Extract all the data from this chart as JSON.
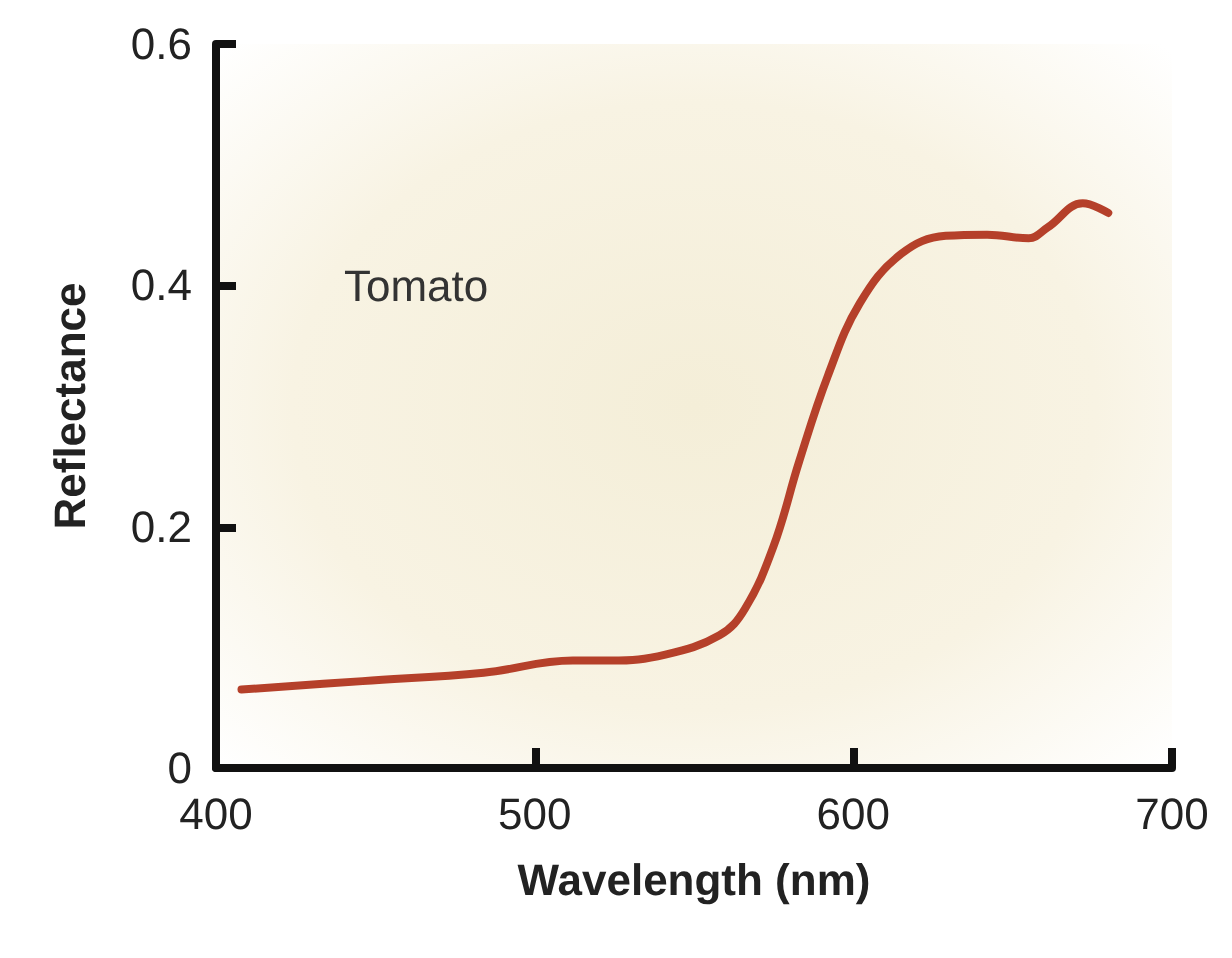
{
  "chart_data": {
    "type": "line",
    "xlabel": "Wavelength (nm)",
    "ylabel": "Reflectance",
    "annotations": [
      "Tomato"
    ],
    "xlim": [
      400,
      700
    ],
    "xticks": [
      400,
      500,
      600,
      700
    ],
    "ylim": [
      0,
      0.6
    ],
    "yticks": [
      0,
      0.2,
      0.4,
      0.6
    ],
    "grid": false,
    "marker": "none",
    "line_style": "solid",
    "series": [
      {
        "color": "#b5402a",
        "x": [
          408,
          446,
          484,
          512,
          524,
          541,
          558,
          566,
          575,
          583,
          592,
          602,
          615,
          629,
          642,
          655,
          661,
          672,
          680
        ],
        "values": [
          0.065,
          0.072,
          0.079,
          0.089,
          0.089,
          0.094,
          0.11,
          0.132,
          0.184,
          0.254,
          0.325,
          0.385,
          0.426,
          0.441,
          0.442,
          0.439,
          0.448,
          0.468,
          0.46
        ]
      }
    ]
  }
}
